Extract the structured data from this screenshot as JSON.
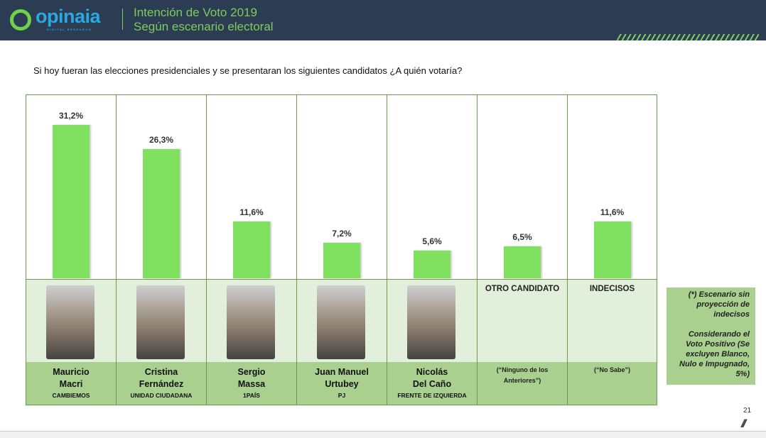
{
  "header": {
    "logo_text": "opinaia",
    "logo_sub": "DIGITAL RESEARCH",
    "title_line1": "Intención de Voto 2019",
    "title_line2": "Según escenario electoral"
  },
  "question": "Si hoy fueran las elecciones presidenciales y se presentaran los siguientes candidatos ¿A quién votaría?",
  "chart_data": {
    "type": "bar",
    "ylim": [
      0,
      35
    ],
    "grid": false,
    "categories": [
      "Mauricio Macri",
      "Cristina Fernández",
      "Sergio Massa",
      "Juan Manuel Urtubey",
      "Nicolás Del Caño",
      "OTRO CANDIDATO",
      "INDECISOS"
    ],
    "values": [
      31.2,
      26.3,
      11.6,
      7.2,
      5.6,
      6.5,
      11.6
    ],
    "labels": [
      "31,2%",
      "26,3%",
      "11,6%",
      "7,2%",
      "5,6%",
      "6,5%",
      "11,6%"
    ],
    "bar_color": "#80e060"
  },
  "columns": [
    {
      "name1": "Mauricio",
      "name2": "Macri",
      "party": "CAMBIEMOS",
      "photo": true
    },
    {
      "name1": "Cristina",
      "name2": "Fernández",
      "party": "UNIDAD CIUDADANA",
      "photo": true
    },
    {
      "name1": "Sergio",
      "name2": "Massa",
      "party": "1PAÍS",
      "photo": true
    },
    {
      "name1": "Juan Manuel",
      "name2": "Urtubey",
      "party": "PJ",
      "photo": true
    },
    {
      "name1": "Nicolás",
      "name2": "Del Caño",
      "party": "FRENTE DE IZQUIERDA",
      "photo": true
    },
    {
      "header": "OTRO CANDIDATO",
      "note": "(“Ninguno de los Anteriores”)"
    },
    {
      "header": "INDECISOS",
      "note": "(“No Sabe”)"
    }
  ],
  "footnote": {
    "line1": "(*) Escenario sin proyección de indecisos",
    "line2": "Considerando el Voto Positivo (Se excluyen Blanco, Nulo e Impugnado, 5%)"
  },
  "page_number": "21"
}
